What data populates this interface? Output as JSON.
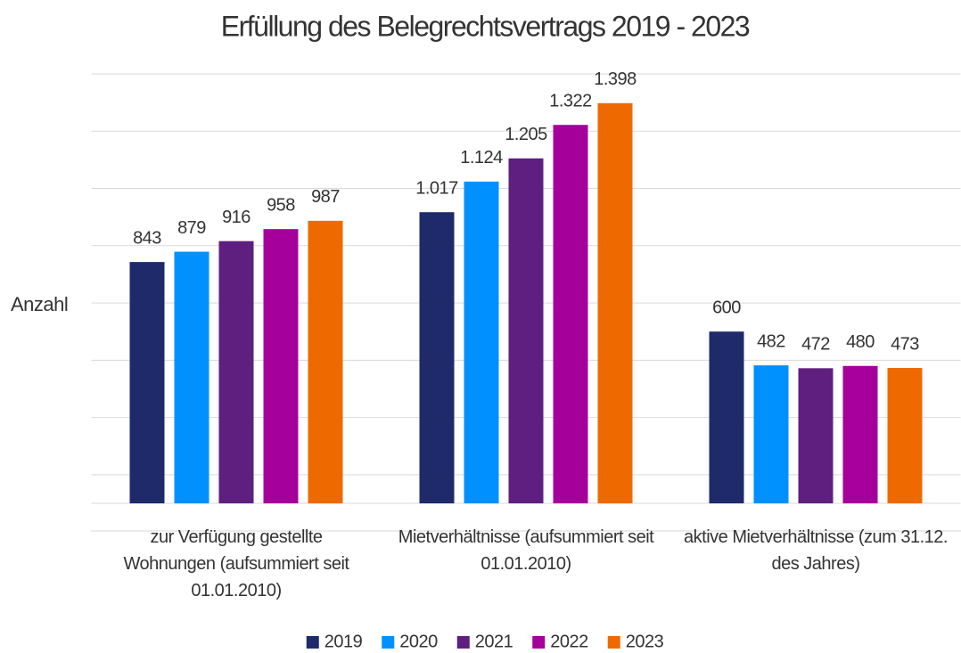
{
  "chart_data": {
    "type": "bar",
    "title": "Erfüllung des Belegrechtsvertrags 2019 - 2023",
    "y_label": "Anzahl",
    "categories": [
      "zur Verfügung gestellte Wohnungen (aufsummiert seit 01.01.2010)",
      "Mietverhältnisse (aufsummiert seit 01.01.2010)",
      "aktive Mietverhältnisse (zum 31.12. des Jahres)"
    ],
    "series": [
      {
        "name": "2019",
        "color": "#1f2a6b",
        "values": [
          843,
          1017,
          600
        ],
        "value_labels": [
          "843",
          "1.017",
          "600"
        ]
      },
      {
        "name": "2020",
        "color": "#0091ff",
        "values": [
          879,
          1124,
          482
        ],
        "value_labels": [
          "879",
          "1.124",
          "482"
        ]
      },
      {
        "name": "2021",
        "color": "#5f1f7f",
        "values": [
          916,
          1205,
          472
        ],
        "value_labels": [
          "916",
          "1.205",
          "472"
        ]
      },
      {
        "name": "2022",
        "color": "#a5009a",
        "values": [
          958,
          1322,
          480
        ],
        "value_labels": [
          "958",
          "1.322",
          "480"
        ]
      },
      {
        "name": "2023",
        "color": "#ee6a00",
        "values": [
          987,
          1398,
          473
        ],
        "value_labels": [
          "987",
          "1.398",
          "473"
        ]
      }
    ],
    "ylim": [
      0,
      1500
    ],
    "yticks": [
      0,
      100,
      300,
      500,
      700,
      900,
      1100,
      1300,
      1500
    ],
    "grid": true,
    "legend": "bottom"
  }
}
